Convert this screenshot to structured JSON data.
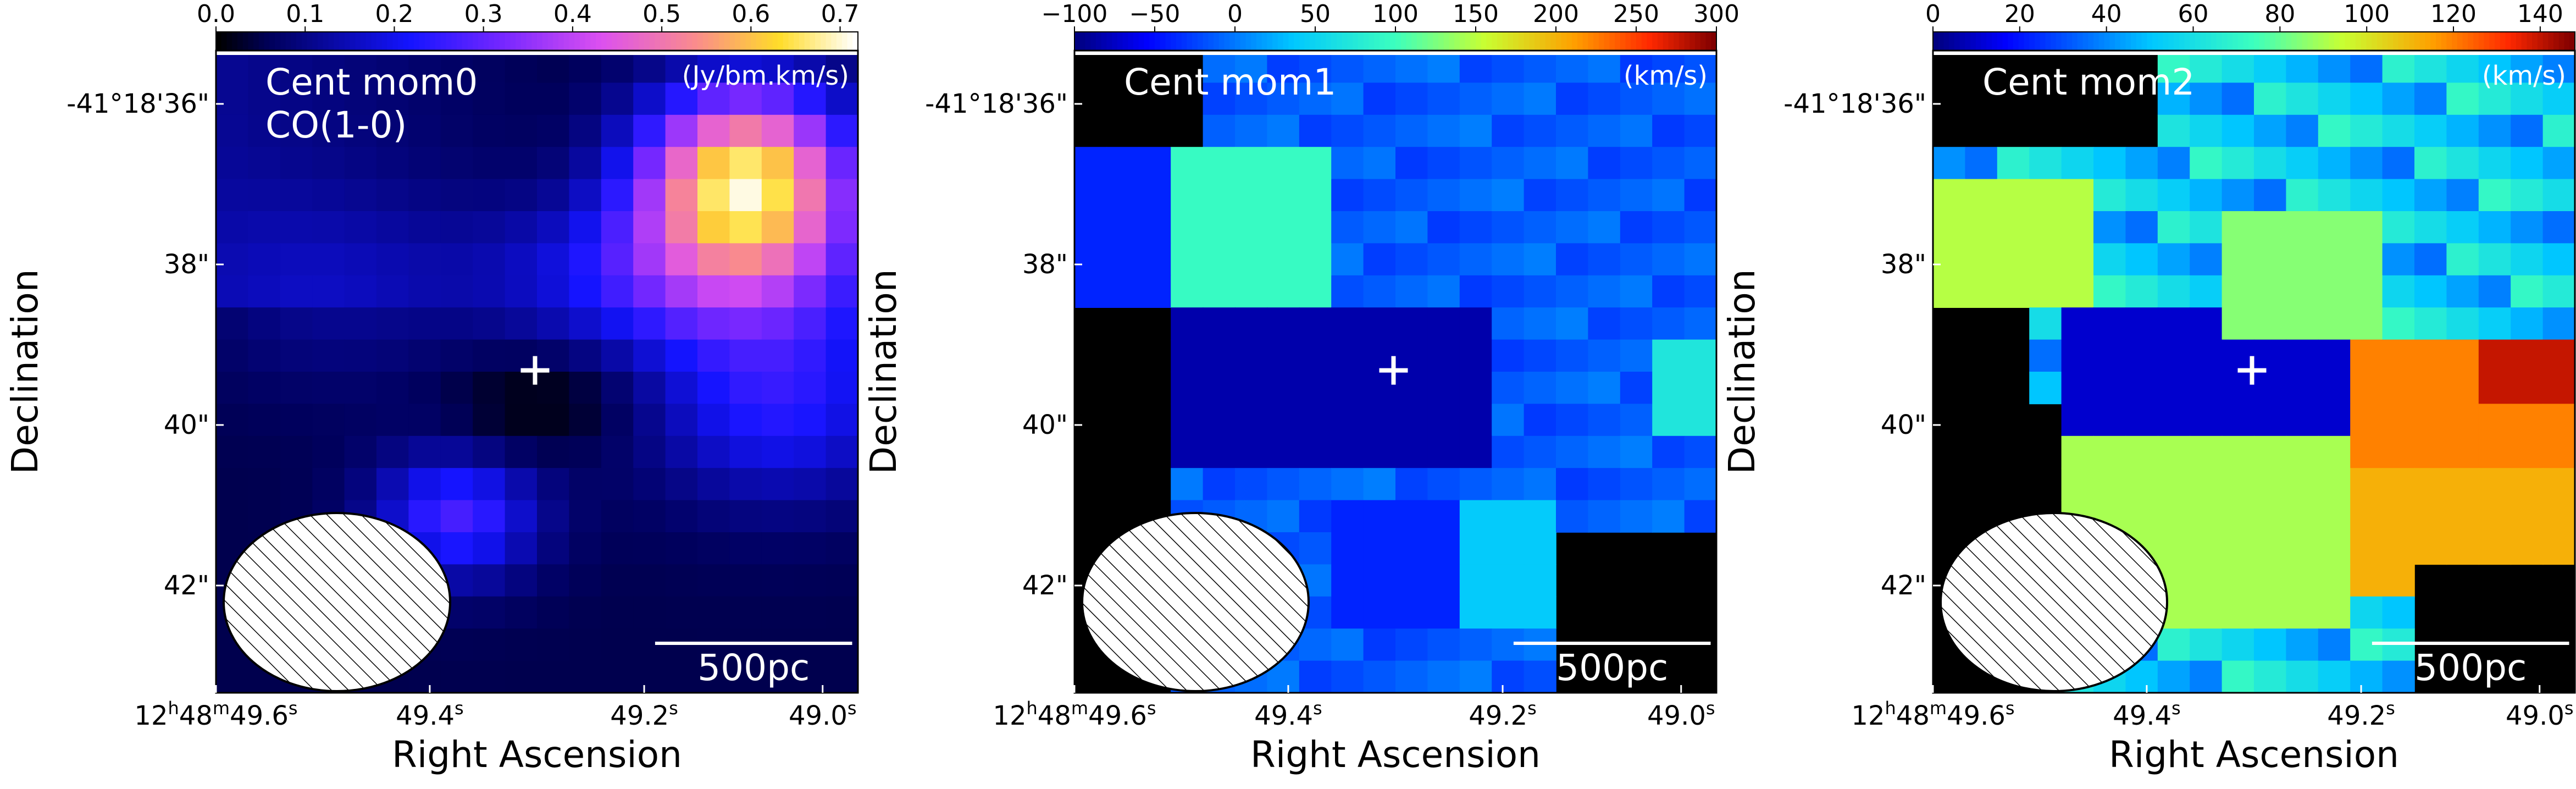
{
  "chart_data": [
    {
      "type": "heatmap",
      "panel_label": "Cent mom0",
      "line_label": "CO(1-0)",
      "unit_label": "(Jy/bm.km/s)",
      "colormap": "gnuplot2",
      "colorbar": {
        "ticks": [
          "0.0",
          "0.1",
          "0.2",
          "0.3",
          "0.4",
          "0.5",
          "0.6",
          "0.7"
        ],
        "range": [
          0.0,
          0.72
        ]
      },
      "ylabel": "Declination",
      "xlabel": "Right Ascension",
      "yticks": [
        "-41°18'36\"",
        "38\"",
        "40\"",
        "42\""
      ],
      "xticks": [
        "12h48m49.6s",
        "49.4s",
        "49.2s",
        "49.0s"
      ],
      "scalebar_label": "500pc",
      "has_beam": true,
      "has_center_cross": true
    },
    {
      "type": "heatmap",
      "panel_label": "Cent mom1",
      "line_label": "",
      "unit_label": "(km/s)",
      "colormap": "jet",
      "colorbar": {
        "ticks": [
          "−100",
          "−50",
          "0",
          "50",
          "100",
          "150",
          "200",
          "250",
          "300"
        ],
        "range": [
          -100,
          300
        ]
      },
      "ylabel": "Declination",
      "xlabel": "Right Ascension",
      "yticks": [
        "-41°18'36\"",
        "38\"",
        "40\"",
        "42\""
      ],
      "xticks": [
        "12h48m49.6s",
        "49.4s",
        "49.2s",
        "49.0s"
      ],
      "scalebar_label": "500pc",
      "has_beam": true,
      "has_center_cross": true
    },
    {
      "type": "heatmap",
      "panel_label": "Cent mom2",
      "line_label": "",
      "unit_label": "(km/s)",
      "colormap": "jet",
      "colorbar": {
        "ticks": [
          "0",
          "20",
          "40",
          "60",
          "80",
          "100",
          "120",
          "140"
        ],
        "range": [
          0,
          148
        ]
      },
      "ylabel": "Declination",
      "xlabel": "Right Ascension",
      "yticks": [
        "-41°18'36\"",
        "38\"",
        "40\"",
        "42\""
      ],
      "xticks": [
        "12h48m49.6s",
        "49.4s",
        "49.2s",
        "49.0s"
      ],
      "scalebar_label": "500pc",
      "has_beam": true,
      "has_center_cross": true
    }
  ]
}
